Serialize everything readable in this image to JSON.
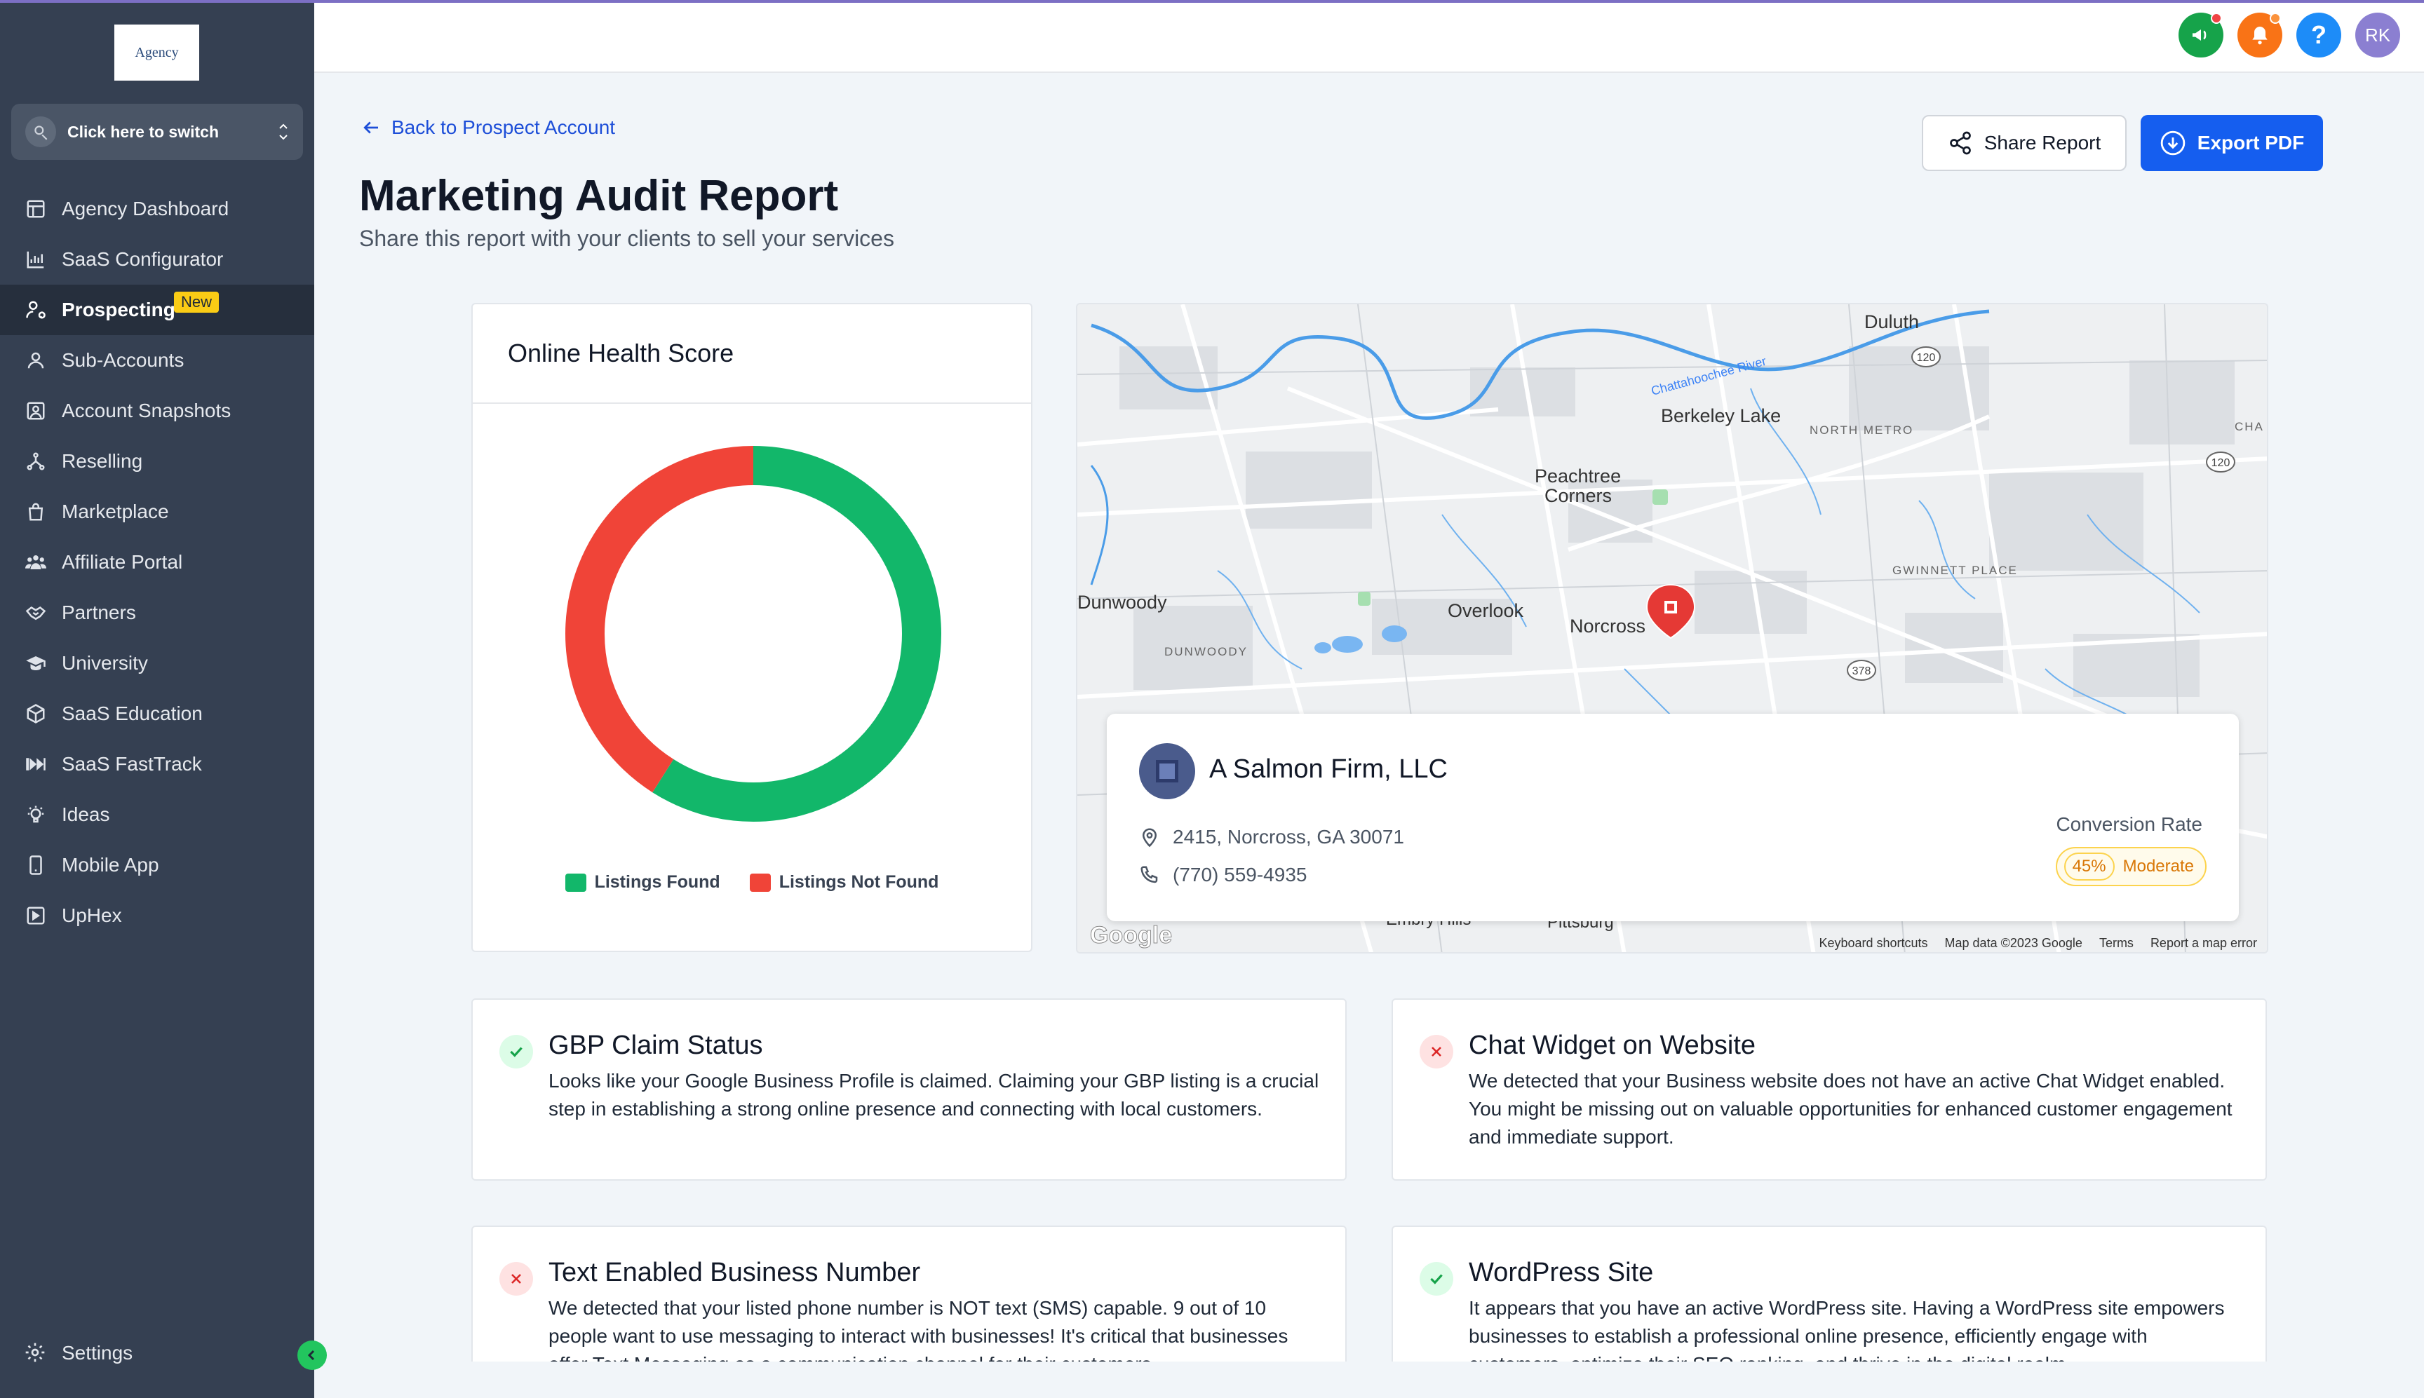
{
  "sidebar": {
    "logo_text": "Agency",
    "switcher_label": "Click here to switch",
    "items": [
      {
        "label": "Agency Dashboard",
        "icon": "dashboard-icon"
      },
      {
        "label": "SaaS Configurator",
        "icon": "chart-icon"
      },
      {
        "label": "Prospecting",
        "icon": "user-search-icon",
        "badge": "New",
        "active": true
      },
      {
        "label": "Sub-Accounts",
        "icon": "user-icon"
      },
      {
        "label": "Account Snapshots",
        "icon": "snapshot-icon"
      },
      {
        "label": "Reselling",
        "icon": "reselling-icon"
      },
      {
        "label": "Marketplace",
        "icon": "bag-icon"
      },
      {
        "label": "Affiliate Portal",
        "icon": "users-icon"
      },
      {
        "label": "Partners",
        "icon": "handshake-icon"
      },
      {
        "label": "University",
        "icon": "graduation-cap-icon"
      },
      {
        "label": "SaaS Education",
        "icon": "cube-icon"
      },
      {
        "label": "SaaS FastTrack",
        "icon": "fast-forward-icon"
      },
      {
        "label": "Ideas",
        "icon": "lightbulb-icon"
      },
      {
        "label": "Mobile App",
        "icon": "mobile-icon"
      },
      {
        "label": "UpHex",
        "icon": "uphex-icon"
      }
    ],
    "settings_label": "Settings"
  },
  "header": {
    "avatar_initials": "RK",
    "help_label": "?"
  },
  "page": {
    "back_link": "Back to Prospect Account",
    "title": "Marketing Audit Report",
    "subtitle": "Share this report with your clients to sell your services",
    "share_button": "Share Report",
    "export_button": "Export PDF"
  },
  "health": {
    "title": "Online Health Score",
    "legend_found": "Listings Found",
    "legend_not_found": "Listings Not Found",
    "found_fraction": 0.59,
    "found_color": "#12b76a",
    "not_found_color": "#f04438"
  },
  "map": {
    "labels": {
      "duluth": "Duluth",
      "berkeley_lake": "Berkeley Lake",
      "north_metro": "NORTH METRO",
      "peachtree_1": "Peachtree",
      "peachtree_2": "Corners",
      "dunwoody": "Dunwoody",
      "dunwoody_small": "DUNWOODY",
      "overlook": "Overlook",
      "norcross": "Norcross",
      "gwinnett_place": "GWINNETT PLACE",
      "river": "Chattahoochee River",
      "pittsburg": "Pittsburg",
      "embry_hills": "Embry Hills",
      "route_120a": "120",
      "route_120b": "120",
      "route_378": "378",
      "cha": "CHA",
      "google": "Google"
    },
    "footer": [
      "Keyboard shortcuts",
      "Map data ©2023 Google",
      "Terms",
      "Report a map error"
    ]
  },
  "business": {
    "name": "A Salmon Firm, LLC",
    "address": "2415, Norcross, GA 30071",
    "phone": "(770) 559-4935",
    "conversion_label": "Conversion Rate",
    "conversion_pct": "45%",
    "conversion_level": "Moderate"
  },
  "audits": [
    {
      "title": "GBP Claim Status",
      "status": "ok",
      "desc": "Looks like your Google Business Profile is claimed. Claiming your GBP listing is a crucial step in establishing a strong online presence and connecting with local customers."
    },
    {
      "title": "Chat Widget on Website",
      "status": "bad",
      "desc": "We detected that your Business website does not have an active Chat Widget enabled. You might be missing out on valuable opportunities for enhanced customer engagement and immediate support."
    },
    {
      "title": "Text Enabled Business Number",
      "status": "bad",
      "desc": "We detected that your listed phone number is NOT text (SMS) capable. 9 out of 10 people want to use messaging to interact with businesses! It's critical that businesses offer Text Messaging as a communication channel for their customers."
    },
    {
      "title": "WordPress Site",
      "status": "ok",
      "desc": "It appears that you have an active WordPress site. Having a WordPress site empowers businesses to establish a professional online presence, efficiently engage with customers, optimize their SEO ranking, and thrive in the digital realm."
    }
  ]
}
